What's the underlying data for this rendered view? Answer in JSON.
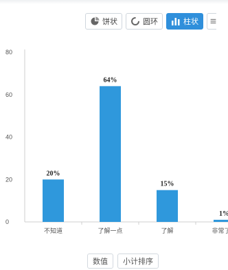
{
  "toolbar": {
    "pie_label": "饼状",
    "ring_label": "圆环",
    "bar_label": "柱状"
  },
  "footer": {
    "value_label": "数值",
    "sort_label": "小计排序"
  },
  "colors": {
    "bar": "#2f98dc",
    "accent": "#2f8fdb",
    "axis": "#cfcfcf"
  },
  "chart_data": {
    "type": "bar",
    "categories": [
      "不知道",
      "了解一点",
      "了解",
      "非常了解"
    ],
    "values": [
      20,
      64,
      15,
      1
    ],
    "data_labels": [
      "20%",
      "64%",
      "15%",
      "1%"
    ],
    "yticks": [
      0,
      20,
      40,
      60,
      80
    ],
    "ylim": [
      0,
      80
    ],
    "grid": false,
    "title": "",
    "xlabel": "",
    "ylabel": ""
  }
}
